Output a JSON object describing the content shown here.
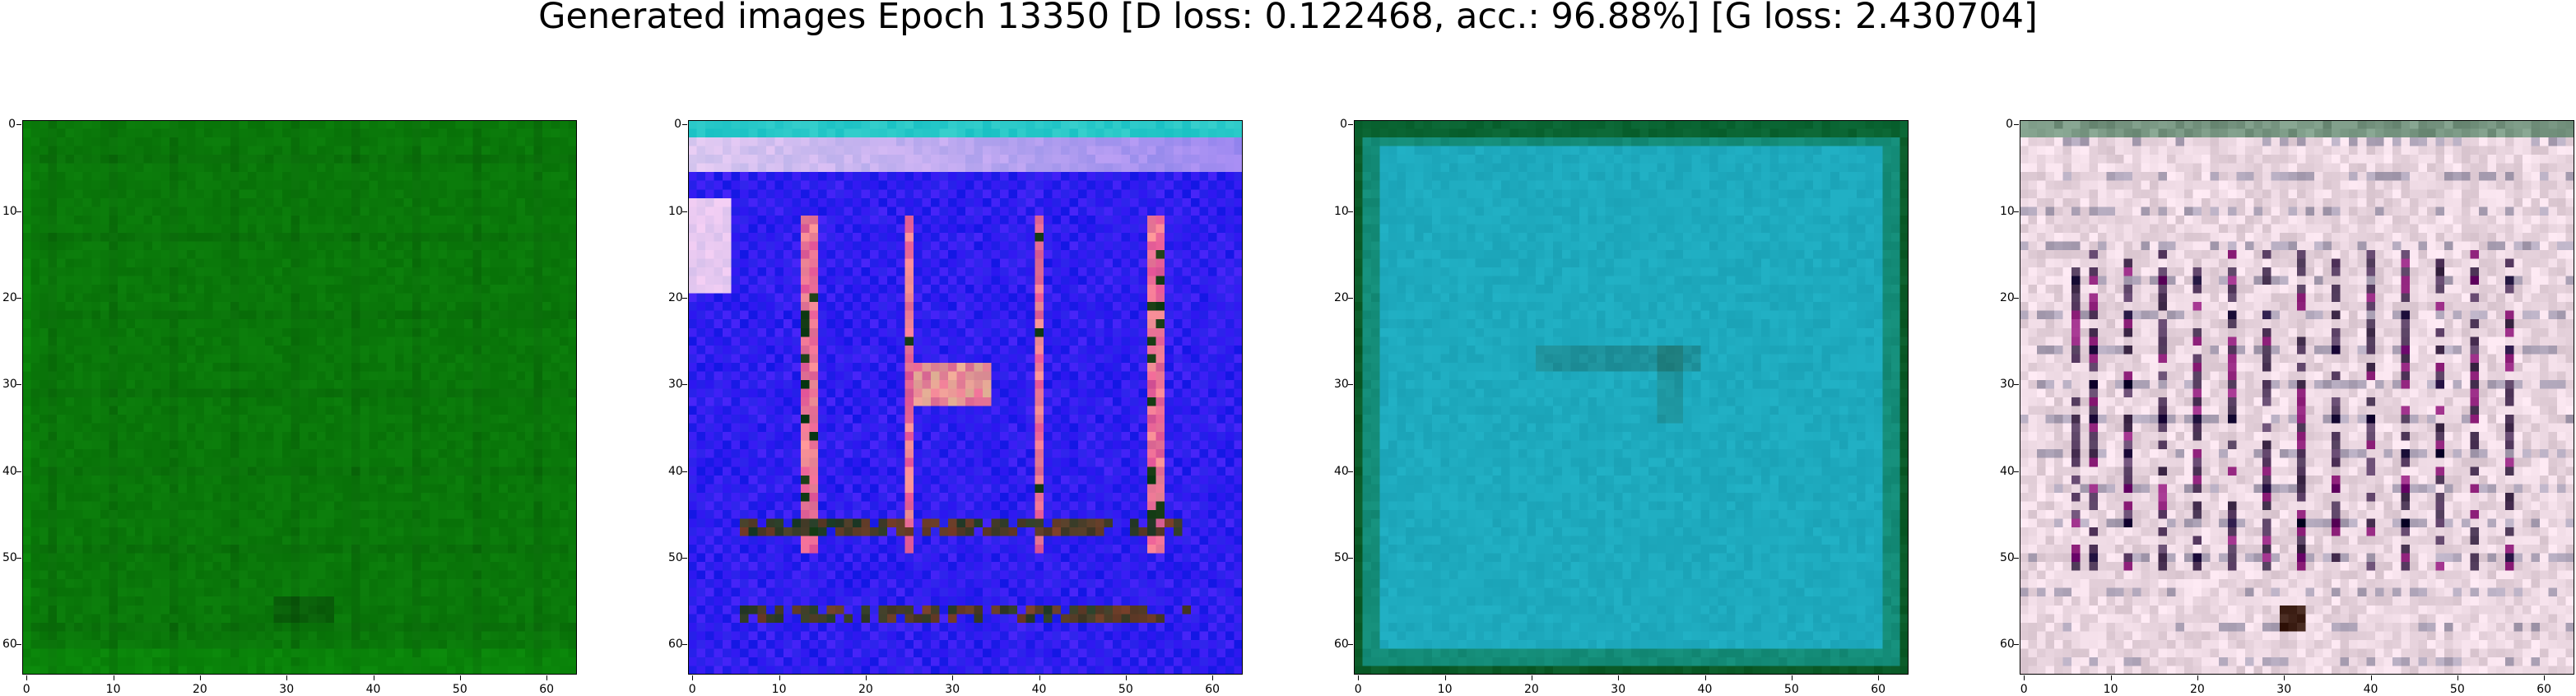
{
  "figure": {
    "suptitle": "Generated images Epoch 13350 [D loss: 0.122468, acc.: 96.88%] [G loss: 2.430704]"
  },
  "axes_ticks": {
    "x": [
      "0",
      "10",
      "20",
      "30",
      "40",
      "50",
      "60"
    ],
    "y": [
      "0",
      "10",
      "20",
      "30",
      "40",
      "50",
      "60"
    ]
  },
  "panels": [
    {
      "name": "generated-image-1",
      "description_color": "#0a7d0a",
      "style": "green"
    },
    {
      "name": "generated-image-2",
      "description_color": "#2a1ee6",
      "style": "blue"
    },
    {
      "name": "generated-image-3",
      "description_color": "#1aa6b4",
      "style": "cyan"
    },
    {
      "name": "generated-image-4",
      "description_color": "#e8d4dc",
      "style": "pink"
    }
  ]
}
